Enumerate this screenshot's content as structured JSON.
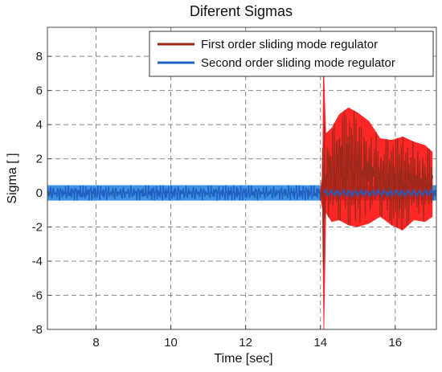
{
  "chart_data": {
    "type": "line",
    "title": "Diferent Sigmas",
    "xlabel": "Time [sec]",
    "ylabel": "Sigma [  ]",
    "xlim": [
      6.7,
      17.1
    ],
    "ylim": [
      -8,
      9.7
    ],
    "xticks": [
      8,
      10,
      12,
      14,
      16
    ],
    "yticks": [
      -8,
      -6,
      -4,
      -2,
      0,
      2,
      4,
      6,
      8
    ],
    "grid": true,
    "legend_position": "top-right",
    "series": [
      {
        "name": "First order sliding mode regulator",
        "color": "#9B2A1A",
        "fill_color": "#FF1010",
        "x": [
          14.0,
          14.05,
          14.08,
          14.1,
          14.15,
          14.3,
          14.5,
          14.75,
          15.0,
          15.3,
          15.6,
          15.9,
          16.2,
          16.5,
          16.8,
          17.0
        ],
        "max": [
          0.3,
          1.0,
          9.5,
          6.8,
          3.5,
          3.8,
          4.6,
          5.0,
          4.7,
          4.2,
          3.2,
          3.1,
          3.3,
          3.0,
          2.8,
          2.4
        ],
        "min": [
          -0.3,
          -1.0,
          -8.0,
          -8.0,
          -1.2,
          -1.7,
          -1.6,
          -1.9,
          -2.0,
          -1.8,
          -1.4,
          -1.9,
          -2.2,
          -1.6,
          -1.7,
          -1.4
        ]
      },
      {
        "name": "Second order sliding mode regulator",
        "color": "#1F5FBF",
        "fill_color": "#1F7FE0",
        "x": [
          6.7,
          17.1
        ],
        "max": [
          0.45,
          0.45
        ],
        "min": [
          -0.45,
          -0.45
        ]
      }
    ]
  }
}
